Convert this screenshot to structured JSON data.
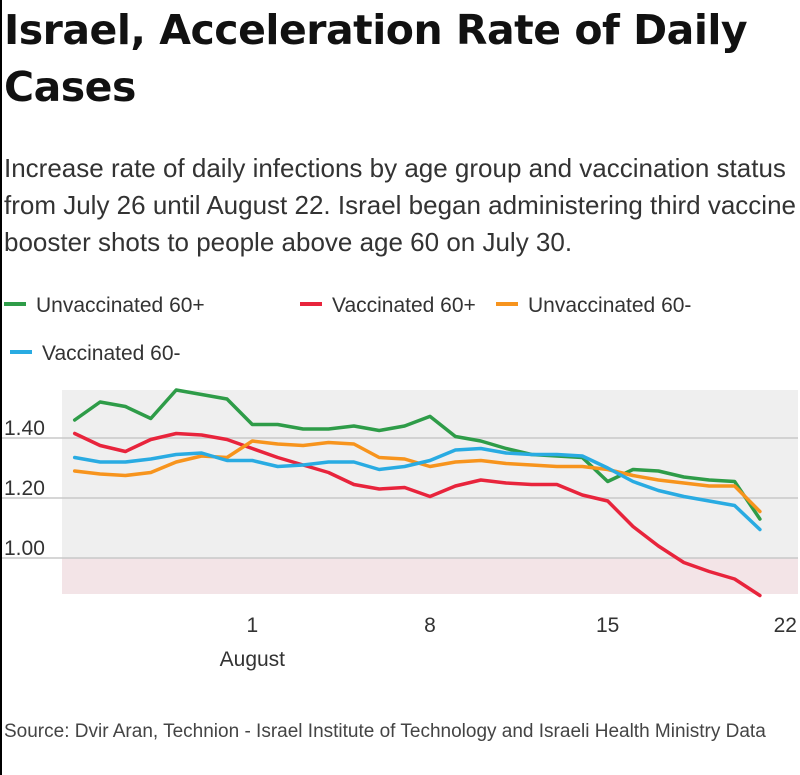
{
  "title": "Israel, Acceleration Rate of Daily Cases",
  "subtitle": "Increase rate of daily infections by age group and vaccination status from July 26 until August 22. Israel began administering third vaccine booster shots to people above age 60 on July 30.",
  "source": "Source: Dvir Aran, Technion - Israel Institute of Technology and Israeli Health Ministry Data",
  "legend": [
    {
      "label": "Unvaccinated 60+",
      "color": "#2e9c48"
    },
    {
      "label": "Vaccinated 60+",
      "color": "#e8243c"
    },
    {
      "label": "Unvaccinated 60-",
      "color": "#f7941d"
    },
    {
      "label": "Vaccinated 60-",
      "color": "#29abe2"
    }
  ],
  "chart_data": {
    "type": "line",
    "title": "Israel, Acceleration Rate of Daily Cases",
    "xlabel": "August",
    "ylabel": "",
    "x": [
      -6,
      -5,
      -4,
      -3,
      -2,
      -1,
      0,
      1,
      2,
      3,
      4,
      5,
      6,
      7,
      8,
      9,
      10,
      11,
      12,
      13,
      14,
      15,
      16,
      17,
      18,
      19,
      20,
      21,
      22
    ],
    "xticks": [
      {
        "value": 1,
        "label": "1"
      },
      {
        "value": 8,
        "label": "8"
      },
      {
        "value": 15,
        "label": "15"
      },
      {
        "value": 22,
        "label": "22"
      }
    ],
    "x_group_label": {
      "value": 1,
      "label": "August"
    },
    "yticks": [
      {
        "value": 1.0,
        "label": "1.00"
      },
      {
        "value": 1.2,
        "label": "1.20"
      },
      {
        "value": 1.4,
        "label": "1.40"
      }
    ],
    "ylim": [
      0.88,
      1.56
    ],
    "xlim": [
      -6.5,
      22.5
    ],
    "shaded_band": {
      "from": 0.88,
      "to": 1.0
    },
    "series": [
      {
        "name": "Unvaccinated 60+",
        "color": "#2e9c48",
        "values": [
          1.46,
          1.52,
          1.505,
          1.465,
          1.56,
          1.545,
          1.53,
          1.445,
          1.445,
          1.43,
          1.43,
          1.44,
          1.425,
          1.44,
          1.472,
          1.405,
          1.39,
          1.365,
          1.345,
          1.34,
          1.335,
          1.255,
          1.295,
          1.29,
          1.27,
          1.26,
          1.255,
          1.13,
          null
        ]
      },
      {
        "name": "Vaccinated 60+",
        "color": "#e8243c",
        "values": [
          1.415,
          1.375,
          1.355,
          1.395,
          1.415,
          1.41,
          1.395,
          1.365,
          1.335,
          1.31,
          1.285,
          1.245,
          1.23,
          1.235,
          1.205,
          1.24,
          1.26,
          1.25,
          1.245,
          1.245,
          1.21,
          1.19,
          1.105,
          1.04,
          0.985,
          0.955,
          0.93,
          0.875,
          null
        ]
      },
      {
        "name": "Unvaccinated 60-",
        "color": "#f7941d",
        "values": [
          1.29,
          1.28,
          1.275,
          1.285,
          1.32,
          1.34,
          1.335,
          1.39,
          1.38,
          1.375,
          1.385,
          1.38,
          1.335,
          1.33,
          1.305,
          1.32,
          1.325,
          1.315,
          1.31,
          1.305,
          1.305,
          1.295,
          1.275,
          1.26,
          1.25,
          1.24,
          1.24,
          1.155,
          null
        ]
      },
      {
        "name": "Vaccinated 60-",
        "color": "#29abe2",
        "values": [
          1.335,
          1.32,
          1.32,
          1.33,
          1.345,
          1.35,
          1.325,
          1.325,
          1.305,
          1.31,
          1.32,
          1.32,
          1.295,
          1.305,
          1.325,
          1.36,
          1.365,
          1.35,
          1.345,
          1.345,
          1.34,
          1.3,
          1.255,
          1.225,
          1.205,
          1.19,
          1.175,
          1.095,
          null
        ]
      }
    ]
  }
}
